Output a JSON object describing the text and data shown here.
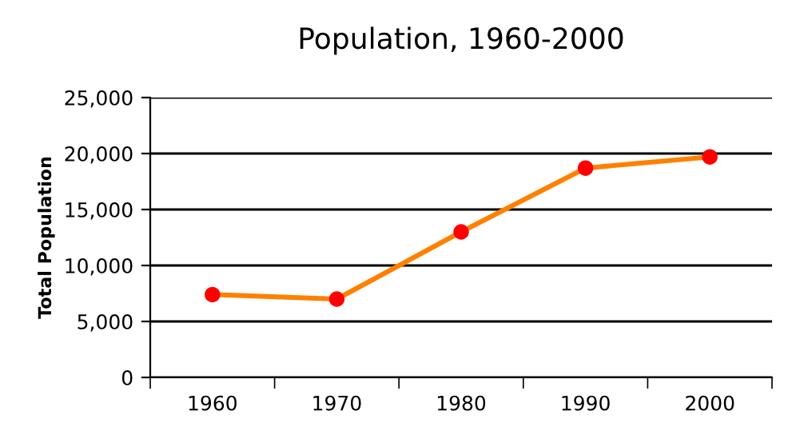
{
  "chart_data": {
    "type": "line",
    "title": "Population, 1960-2000",
    "ylabel": "Total Population",
    "categories": [
      "1960",
      "1970",
      "1980",
      "1990",
      "2000"
    ],
    "series": [
      {
        "color": "#ff8000",
        "colors": [
          "#ff0000",
          "#ff0000",
          "#ff0000",
          "#ff0000",
          "#ff0000"
        ],
        "values": [
          7400,
          7000,
          13000,
          18700,
          19700
        ]
      }
    ],
    "ylim": [
      0,
      25000
    ],
    "yticks": [
      {
        "value": 0,
        "label": "0"
      },
      {
        "value": 5000,
        "label": "5,000"
      },
      {
        "value": 10000,
        "label": "10,000"
      },
      {
        "value": 15000,
        "label": "15,000"
      },
      {
        "value": 20000,
        "label": "20,000"
      },
      {
        "value": 25000,
        "label": "25,000"
      }
    ],
    "grid": "y",
    "marker": "circle",
    "line_style": "solid",
    "legend": false
  }
}
